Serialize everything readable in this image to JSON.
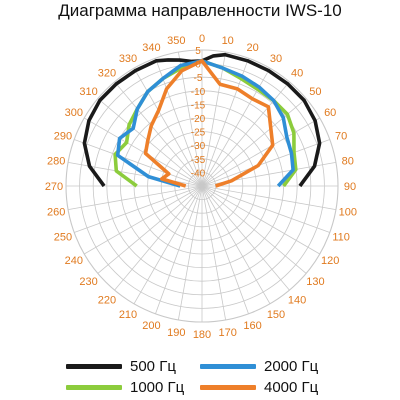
{
  "title": "Диаграмма направленности IWS-10",
  "chart_data": {
    "type": "polar-line",
    "angle_unit": "degrees",
    "angle_zero": "top",
    "angle_direction": "clockwise",
    "angle_ticks": [
      "0",
      "10",
      "20",
      "30",
      "40",
      "50",
      "60",
      "70",
      "80",
      "90",
      "100",
      "110",
      "120",
      "130",
      "140",
      "150",
      "160",
      "170",
      "180",
      "190",
      "200",
      "210",
      "220",
      "230",
      "240",
      "250",
      "260",
      "270",
      "280",
      "290",
      "300",
      "310",
      "320",
      "330",
      "340",
      "350"
    ],
    "radial_ticks": [
      "5",
      "0",
      "-5",
      "-10",
      "-15",
      "-20",
      "-25",
      "-30",
      "-35",
      "-40",
      "-45"
    ],
    "radial_range_db": [
      -45,
      5
    ],
    "grid": true,
    "legend_position": "bottom",
    "series": [
      {
        "name": "500 Гц",
        "color": "#1a1a1a",
        "points": [
          [
            270,
            -9
          ],
          [
            280,
            -3
          ],
          [
            290,
            1
          ],
          [
            300,
            3
          ],
          [
            310,
            4
          ],
          [
            320,
            4
          ],
          [
            330,
            4
          ],
          [
            340,
            4
          ],
          [
            345,
            3
          ],
          [
            350,
            2
          ],
          [
            355,
            1
          ],
          [
            0,
            1
          ],
          [
            5,
            3
          ],
          [
            10,
            4
          ],
          [
            20,
            4
          ],
          [
            30,
            4
          ],
          [
            40,
            4
          ],
          [
            50,
            4
          ],
          [
            60,
            3
          ],
          [
            70,
            1
          ],
          [
            80,
            -3
          ],
          [
            90,
            -9
          ]
        ]
      },
      {
        "name": "1000 Гц",
        "color": "#8ccc3c",
        "points": [
          [
            270,
            -21
          ],
          [
            280,
            -13
          ],
          [
            290,
            -11
          ],
          [
            300,
            -13
          ],
          [
            310,
            -10
          ],
          [
            320,
            -8
          ],
          [
            330,
            -5
          ],
          [
            340,
            -3
          ],
          [
            350,
            -1
          ],
          [
            0,
            1
          ],
          [
            10,
            -1
          ],
          [
            20,
            -3
          ],
          [
            30,
            -4
          ],
          [
            40,
            -4
          ],
          [
            50,
            -4
          ],
          [
            60,
            -6
          ],
          [
            70,
            -9
          ],
          [
            80,
            -10
          ],
          [
            90,
            -15
          ]
        ]
      },
      {
        "name": "2000 Гц",
        "color": "#2f8fd6",
        "points": [
          [
            270,
            -37
          ],
          [
            280,
            -25
          ],
          [
            290,
            -12
          ],
          [
            300,
            -10
          ],
          [
            310,
            -12
          ],
          [
            320,
            -8
          ],
          [
            330,
            -5
          ],
          [
            340,
            -3
          ],
          [
            350,
            0
          ],
          [
            0,
            1
          ],
          [
            10,
            -1
          ],
          [
            20,
            -2
          ],
          [
            30,
            -3
          ],
          [
            40,
            -4
          ],
          [
            50,
            -6
          ],
          [
            60,
            -9
          ],
          [
            70,
            -10
          ],
          [
            80,
            -11
          ],
          [
            90,
            -17
          ]
        ]
      },
      {
        "name": "4000 Гц",
        "color": "#ee7f2a",
        "points": [
          [
            270,
            -39
          ],
          [
            280,
            -30
          ],
          [
            290,
            -32
          ],
          [
            300,
            -21
          ],
          [
            310,
            -19
          ],
          [
            320,
            -16
          ],
          [
            330,
            -13
          ],
          [
            340,
            -7
          ],
          [
            350,
            -2
          ],
          [
            0,
            1
          ],
          [
            10,
            -7
          ],
          [
            20,
            -7
          ],
          [
            30,
            -8
          ],
          [
            40,
            -7
          ],
          [
            50,
            -12
          ],
          [
            60,
            -15
          ],
          [
            70,
            -23
          ],
          [
            80,
            -34
          ],
          [
            90,
            -40
          ]
        ]
      }
    ]
  }
}
